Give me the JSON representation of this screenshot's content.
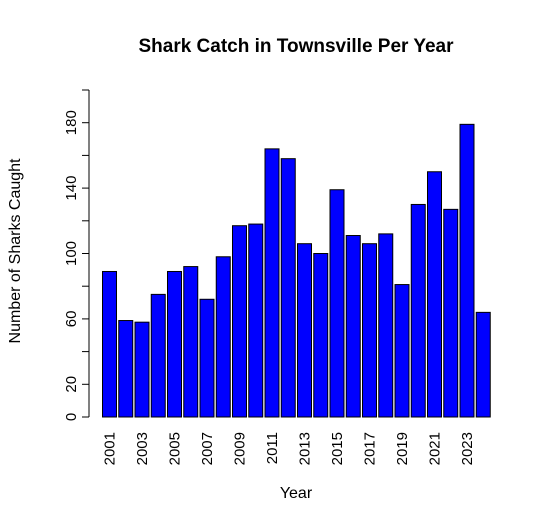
{
  "chart_data": {
    "type": "bar",
    "title": "Shark Catch in Townsville Per Year",
    "xlabel": "Year",
    "ylabel": "Number of Sharks Caught",
    "categories": [
      "2001",
      "2002",
      "2003",
      "2004",
      "2005",
      "2006",
      "2007",
      "2008",
      "2009",
      "2010",
      "2011",
      "2012",
      "2013",
      "2014",
      "2015",
      "2016",
      "2017",
      "2018",
      "2019",
      "2020",
      "2021",
      "2022",
      "2023",
      "2024"
    ],
    "x_tick_labels": [
      "2001",
      "2003",
      "2005",
      "2007",
      "2009",
      "2011",
      "2013",
      "2015",
      "2017",
      "2019",
      "2021",
      "2023"
    ],
    "values": [
      89,
      59,
      58,
      75,
      89,
      92,
      72,
      98,
      117,
      118,
      164,
      158,
      106,
      100,
      139,
      111,
      106,
      112,
      81,
      130,
      150,
      127,
      179,
      64
    ],
    "ylim": [
      0,
      200
    ],
    "y_ticks": [
      0,
      20,
      60,
      100,
      140,
      180
    ],
    "grid": false,
    "bar_color": "#0000ff"
  }
}
